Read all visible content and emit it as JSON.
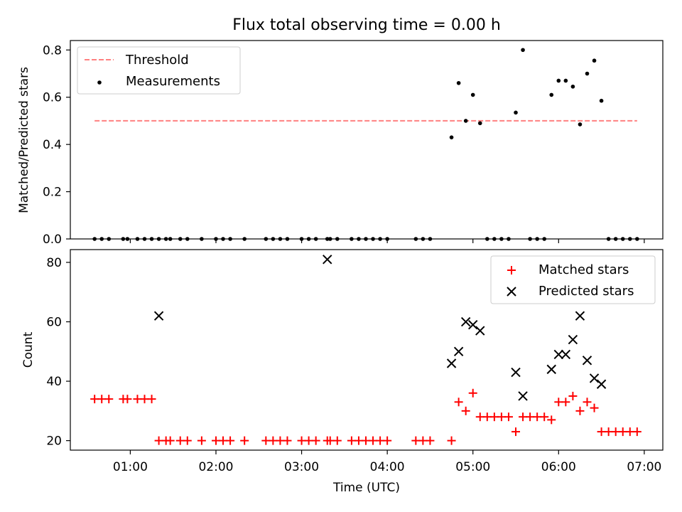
{
  "figure_title": "Flux total observing time = 0.00 h",
  "colors": {
    "threshold": "#ff8080",
    "measurement": "#000000",
    "matched": "#ff0000",
    "predicted": "#000000"
  },
  "chart_data": [
    {
      "type": "scatter",
      "title": "Flux total observing time = 0.00 h",
      "ylabel": "Matched/Predicted stars",
      "xlabel": "",
      "xlim": [
        "00:18",
        "07:13"
      ],
      "ylim": [
        0,
        0.84
      ],
      "yticks": [
        0.0,
        0.2,
        0.4,
        0.6,
        0.8
      ],
      "ytick_labels": [
        "0.0",
        "0.2",
        "0.4",
        "0.6",
        "0.8"
      ],
      "legend_position": "upper left",
      "threshold": {
        "name": "Threshold",
        "value": 0.5,
        "x_range": [
          "00:35",
          "06:55"
        ],
        "style": "dashed"
      },
      "series": [
        {
          "name": "Measurements",
          "marker": "dot",
          "points": [
            [
              "00:35",
              0
            ],
            [
              "00:40",
              0
            ],
            [
              "00:45",
              0
            ],
            [
              "00:55",
              0
            ],
            [
              "00:58",
              0
            ],
            [
              "01:05",
              0
            ],
            [
              "01:10",
              0
            ],
            [
              "01:15",
              0
            ],
            [
              "01:20",
              0
            ],
            [
              "01:25",
              0
            ],
            [
              "01:28",
              0
            ],
            [
              "01:35",
              0
            ],
            [
              "01:40",
              0
            ],
            [
              "01:50",
              0
            ],
            [
              "02:00",
              0
            ],
            [
              "02:05",
              0
            ],
            [
              "02:10",
              0
            ],
            [
              "02:20",
              0
            ],
            [
              "02:35",
              0
            ],
            [
              "02:40",
              0
            ],
            [
              "02:45",
              0
            ],
            [
              "02:50",
              0
            ],
            [
              "03:00",
              0
            ],
            [
              "03:05",
              0
            ],
            [
              "03:10",
              0
            ],
            [
              "03:18",
              0
            ],
            [
              "03:20",
              0
            ],
            [
              "03:25",
              0
            ],
            [
              "03:35",
              0
            ],
            [
              "03:40",
              0
            ],
            [
              "03:45",
              0
            ],
            [
              "03:50",
              0
            ],
            [
              "03:55",
              0
            ],
            [
              "04:00",
              0
            ],
            [
              "04:20",
              0
            ],
            [
              "04:25",
              0
            ],
            [
              "04:30",
              0
            ],
            [
              "04:45",
              0.43
            ],
            [
              "04:50",
              0.66
            ],
            [
              "04:55",
              0.5
            ],
            [
              "05:00",
              0.61
            ],
            [
              "05:05",
              0.49
            ],
            [
              "05:10",
              0
            ],
            [
              "05:15",
              0
            ],
            [
              "05:20",
              0
            ],
            [
              "05:25",
              0
            ],
            [
              "05:30",
              0.535
            ],
            [
              "05:35",
              0.8
            ],
            [
              "05:40",
              0
            ],
            [
              "05:45",
              0
            ],
            [
              "05:50",
              0
            ],
            [
              "05:55",
              0.61
            ],
            [
              "06:00",
              0.67
            ],
            [
              "06:05",
              0.67
            ],
            [
              "06:10",
              0.645
            ],
            [
              "06:15",
              0.485
            ],
            [
              "06:20",
              0.7
            ],
            [
              "06:25",
              0.755
            ],
            [
              "06:30",
              0.585
            ],
            [
              "06:35",
              0
            ],
            [
              "06:40",
              0
            ],
            [
              "06:45",
              0
            ],
            [
              "06:50",
              0
            ],
            [
              "06:55",
              0
            ]
          ]
        }
      ]
    },
    {
      "type": "scatter",
      "title": "",
      "ylabel": "Count",
      "xlabel": "Time (UTC)",
      "xlim": [
        "00:18",
        "07:13"
      ],
      "ylim": [
        16.8,
        84.3
      ],
      "yticks": [
        20,
        40,
        60,
        80
      ],
      "ytick_labels": [
        "20",
        "40",
        "60",
        "80"
      ],
      "xticks": [
        "01:00",
        "02:00",
        "03:00",
        "04:00",
        "05:00",
        "06:00",
        "07:00"
      ],
      "legend_position": "upper right",
      "series": [
        {
          "name": "Matched stars",
          "marker": "plus",
          "points": [
            [
              "00:35",
              34
            ],
            [
              "00:40",
              34
            ],
            [
              "00:45",
              34
            ],
            [
              "00:55",
              34
            ],
            [
              "00:58",
              34
            ],
            [
              "01:05",
              34
            ],
            [
              "01:10",
              34
            ],
            [
              "01:15",
              34
            ],
            [
              "01:20",
              20
            ],
            [
              "01:25",
              20
            ],
            [
              "01:28",
              20
            ],
            [
              "01:35",
              20
            ],
            [
              "01:40",
              20
            ],
            [
              "01:50",
              20
            ],
            [
              "02:00",
              20
            ],
            [
              "02:05",
              20
            ],
            [
              "02:10",
              20
            ],
            [
              "02:20",
              20
            ],
            [
              "02:35",
              20
            ],
            [
              "02:40",
              20
            ],
            [
              "02:45",
              20
            ],
            [
              "02:50",
              20
            ],
            [
              "03:00",
              20
            ],
            [
              "03:05",
              20
            ],
            [
              "03:10",
              20
            ],
            [
              "03:18",
              20
            ],
            [
              "03:20",
              20
            ],
            [
              "03:25",
              20
            ],
            [
              "03:35",
              20
            ],
            [
              "03:40",
              20
            ],
            [
              "03:45",
              20
            ],
            [
              "03:50",
              20
            ],
            [
              "03:55",
              20
            ],
            [
              "04:00",
              20
            ],
            [
              "04:20",
              20
            ],
            [
              "04:25",
              20
            ],
            [
              "04:30",
              20
            ],
            [
              "04:45",
              20
            ],
            [
              "04:50",
              33
            ],
            [
              "04:55",
              30
            ],
            [
              "05:00",
              36
            ],
            [
              "05:05",
              28
            ],
            [
              "05:10",
              28
            ],
            [
              "05:15",
              28
            ],
            [
              "05:20",
              28
            ],
            [
              "05:25",
              28
            ],
            [
              "05:30",
              23
            ],
            [
              "05:35",
              28
            ],
            [
              "05:40",
              28
            ],
            [
              "05:45",
              28
            ],
            [
              "05:50",
              28
            ],
            [
              "05:55",
              27
            ],
            [
              "06:00",
              33
            ],
            [
              "06:05",
              33
            ],
            [
              "06:10",
              35
            ],
            [
              "06:15",
              30
            ],
            [
              "06:20",
              33
            ],
            [
              "06:25",
              31
            ],
            [
              "06:30",
              23
            ],
            [
              "06:35",
              23
            ],
            [
              "06:40",
              23
            ],
            [
              "06:45",
              23
            ],
            [
              "06:50",
              23
            ],
            [
              "06:55",
              23
            ]
          ]
        },
        {
          "name": "Predicted stars",
          "marker": "x",
          "points": [
            [
              "01:20",
              62
            ],
            [
              "03:18",
              81
            ],
            [
              "04:45",
              46
            ],
            [
              "04:50",
              50
            ],
            [
              "04:55",
              60
            ],
            [
              "05:00",
              59
            ],
            [
              "05:05",
              57
            ],
            [
              "05:30",
              43
            ],
            [
              "05:35",
              35
            ],
            [
              "05:55",
              44
            ],
            [
              "06:00",
              49
            ],
            [
              "06:05",
              49
            ],
            [
              "06:10",
              54
            ],
            [
              "06:15",
              62
            ],
            [
              "06:20",
              47
            ],
            [
              "06:25",
              41
            ],
            [
              "06:30",
              39
            ]
          ]
        }
      ]
    }
  ]
}
